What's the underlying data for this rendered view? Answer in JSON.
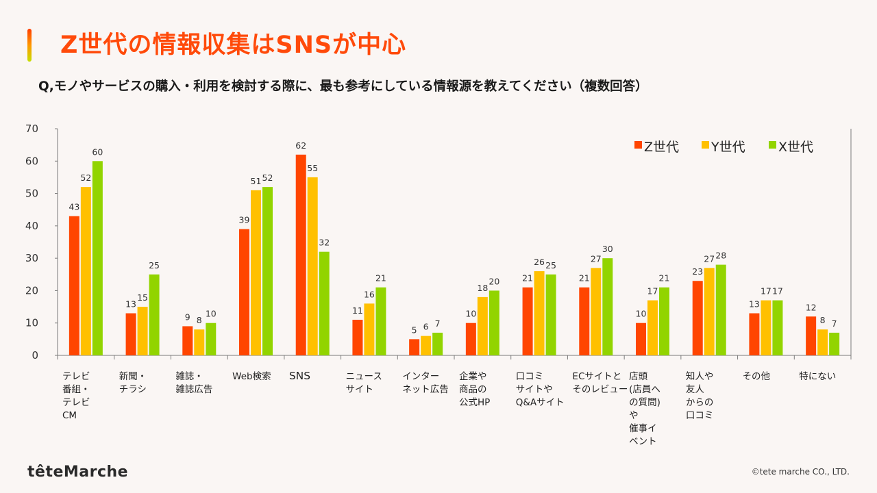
{
  "header": {
    "title": "Z世代の情報収集はSNSが中心",
    "question": "Q,モノやサービスの購入・利用を検討する際に、最も参考にしている情報源を教えてください（複数回答）"
  },
  "chart_data": {
    "type": "bar",
    "title": "Z世代の情報収集はSNSが中心",
    "subtitle": "Q,モノやサービスの購入・利用を検討する際に、最も参考にしている情報源を教えてください（複数回答）",
    "xlabel": "",
    "ylabel": "",
    "ylim": [
      0,
      70
    ],
    "yticks": [
      0,
      10,
      20,
      30,
      40,
      50,
      60,
      70
    ],
    "grid": false,
    "legend_position": "top-right",
    "categories": [
      [
        "テレビ",
        "番組・",
        "テレビ",
        "CM"
      ],
      [
        "新聞・",
        "チラシ"
      ],
      [
        "雑誌・",
        "雑誌広告"
      ],
      [
        "Web検索"
      ],
      [
        "SNS"
      ],
      [
        "ニュース",
        "サイト"
      ],
      [
        "インター",
        "ネット広告"
      ],
      [
        "企業や",
        "商品の",
        "公式HP"
      ],
      [
        "口コミ",
        "サイトや",
        "Q&Aサイト"
      ],
      [
        "ECサイトと",
        "そのレビュー"
      ],
      [
        "店頭",
        "(店員へ",
        "の質問)",
        "や",
        "催事イ",
        "ベント"
      ],
      [
        "知人や",
        "友人",
        "からの",
        "口コミ"
      ],
      [
        "その他"
      ],
      [
        "特にない"
      ]
    ],
    "series": [
      {
        "name": "Z世代",
        "color": "#ff4500",
        "values": [
          43,
          13,
          9,
          39,
          62,
          11,
          5,
          10,
          21,
          21,
          10,
          23,
          13,
          12
        ]
      },
      {
        "name": "Y世代",
        "color": "#ffc000",
        "values": [
          52,
          15,
          8,
          51,
          55,
          16,
          6,
          18,
          26,
          27,
          17,
          27,
          17,
          8
        ]
      },
      {
        "name": "X世代",
        "color": "#92d400",
        "values": [
          60,
          25,
          10,
          52,
          32,
          21,
          7,
          20,
          25,
          30,
          21,
          28,
          17,
          7
        ]
      }
    ]
  },
  "footer": {
    "logo_text": "têteMarche",
    "copyright": "©tete marche CO., LTD."
  }
}
